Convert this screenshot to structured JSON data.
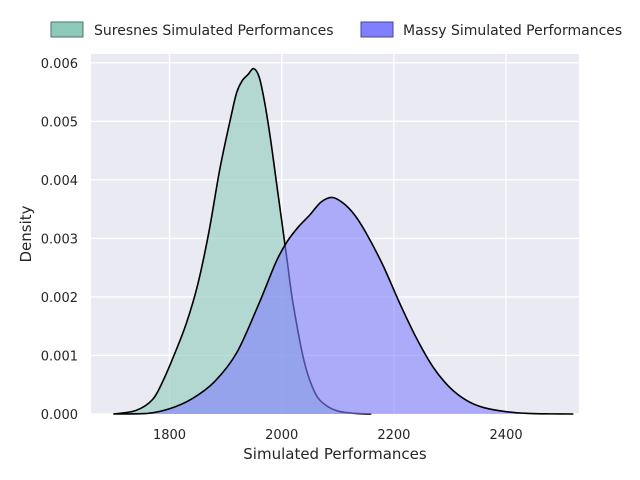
{
  "chart_data": {
    "type": "area",
    "title": "",
    "xlabel": "Simulated Performances",
    "ylabel": "Density",
    "xlim": [
      1660,
      2530
    ],
    "ylim": [
      0,
      0.00615
    ],
    "x_ticks": [
      1800,
      2000,
      2200,
      2400
    ],
    "x_tick_labels": [
      "1800",
      "2000",
      "2200",
      "2400"
    ],
    "y_ticks": [
      0,
      0.001,
      0.002,
      0.003,
      0.004,
      0.005,
      0.006
    ],
    "y_tick_labels": [
      "0.000",
      "0.001",
      "0.002",
      "0.003",
      "0.004",
      "0.005",
      "0.006"
    ],
    "grid": true,
    "legend_position": "top",
    "series": [
      {
        "name": "Suresnes Simulated Performances",
        "color": "#8ecabb",
        "x": [
          1700,
          1740,
          1770,
          1790,
          1810,
          1830,
          1850,
          1870,
          1890,
          1910,
          1920,
          1930,
          1940,
          1950,
          1960,
          1970,
          1980,
          1990,
          2000,
          2010,
          2020,
          2040,
          2060,
          2080,
          2100,
          2120,
          2140,
          2160
        ],
        "values": [
          0.0,
          6e-05,
          0.00025,
          0.0006,
          0.00105,
          0.00155,
          0.0022,
          0.0031,
          0.0042,
          0.0051,
          0.0055,
          0.0057,
          0.0058,
          0.0059,
          0.00575,
          0.0053,
          0.0047,
          0.004,
          0.0033,
          0.0026,
          0.0019,
          0.0009,
          0.00035,
          0.00014,
          5e-05,
          2e-05,
          5e-06,
          0.0
        ]
      },
      {
        "name": "Massy Simulated Performances",
        "color": "#8080ff",
        "x": [
          1700,
          1760,
          1800,
          1840,
          1880,
          1920,
          1960,
          1990,
          2010,
          2030,
          2050,
          2070,
          2090,
          2110,
          2130,
          2150,
          2180,
          2210,
          2240,
          2270,
          2300,
          2330,
          2360,
          2400,
          2440,
          2480,
          2520
        ],
        "values": [
          0.0,
          1e-05,
          9e-05,
          0.00026,
          0.00055,
          0.00105,
          0.0019,
          0.0026,
          0.00295,
          0.0032,
          0.0034,
          0.00362,
          0.0037,
          0.0036,
          0.0034,
          0.0031,
          0.00255,
          0.0019,
          0.0013,
          0.0008,
          0.00045,
          0.00023,
          0.00011,
          4e-05,
          1e-05,
          2e-06,
          0.0
        ]
      }
    ]
  }
}
